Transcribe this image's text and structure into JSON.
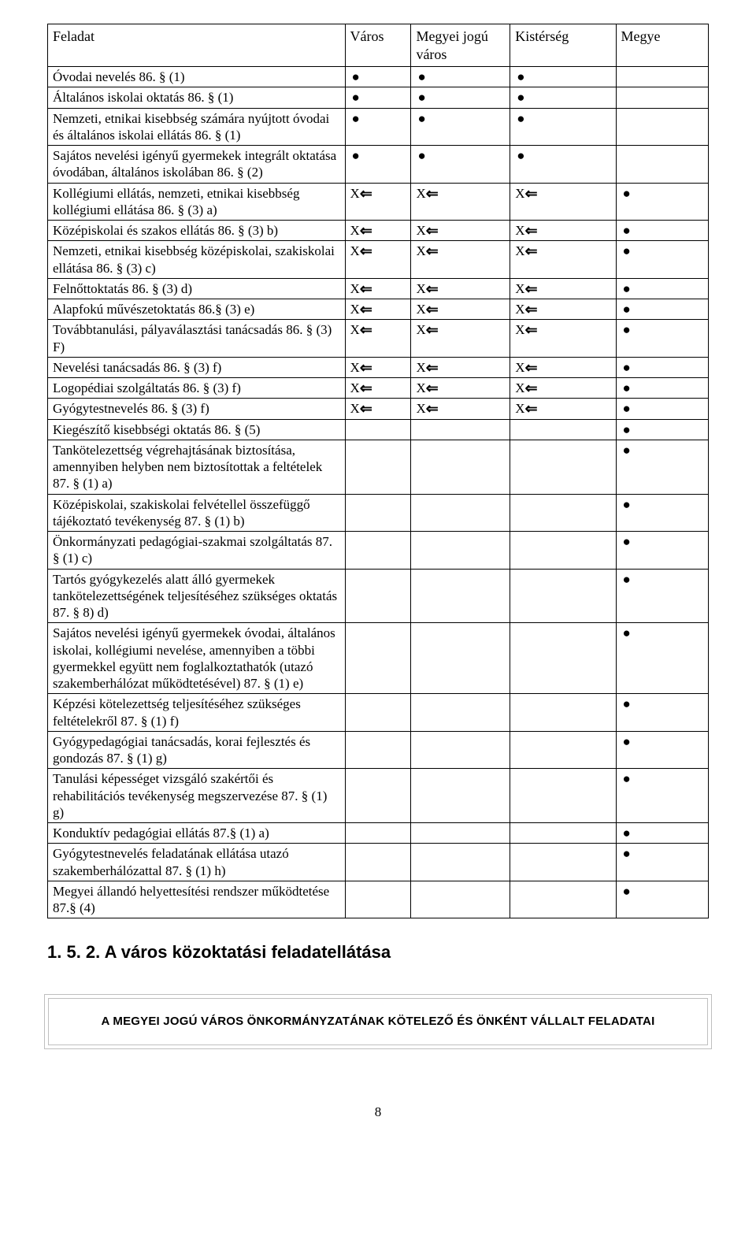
{
  "table": {
    "headers": {
      "task": "Feladat",
      "city": "Város",
      "mjv": "Megyei jogú város",
      "kisterseg": "Kistérség",
      "megye": "Megye"
    },
    "marks": {
      "bullet": "●",
      "x": "X",
      "arrow": "⇐"
    },
    "rows": [
      {
        "task": "Óvodai nevelés 86. § (1)",
        "city": "b",
        "mjv": "b",
        "kisterseg": "b",
        "megye": ""
      },
      {
        "task": "Általános iskolai oktatás 86. § (1)",
        "city": "b",
        "mjv": "b",
        "kisterseg": "b",
        "megye": ""
      },
      {
        "task": "Nemzeti, etnikai kisebbség számára nyújtott óvodai és általános iskolai ellátás 86. § (1)",
        "city": "b",
        "mjv": "b",
        "kisterseg": "b",
        "megye": ""
      },
      {
        "task": "Sajátos nevelési igényű gyermekek integrált oktatása óvodában, általános iskolában 86. § (2)",
        "city": "b",
        "mjv": "b",
        "kisterseg": "b",
        "megye": ""
      },
      {
        "task": "Kollégiumi ellátás, nemzeti, etnikai kisebbség kollégiumi ellátása 86. § (3) a)",
        "city": "x",
        "mjv": "x",
        "kisterseg": "x",
        "megye": "b"
      },
      {
        "task": "Középiskolai és szakos ellátás 86. § (3) b)",
        "city": "x",
        "mjv": "x",
        "kisterseg": "x",
        "megye": "b"
      },
      {
        "task": "Nemzeti, etnikai kisebbség középiskolai, szakiskolai ellátása 86. § (3) c)",
        "city": "x",
        "mjv": "x",
        "kisterseg": "x",
        "megye": "b"
      },
      {
        "task": "Felnőttoktatás 86. § (3) d)",
        "city": "x",
        "mjv": "x",
        "kisterseg": "x",
        "megye": "b"
      },
      {
        "task": "Alapfokú művészetoktatás 86.§ (3) e)",
        "city": "x",
        "mjv": "x",
        "kisterseg": "x",
        "megye": "b"
      },
      {
        "task": "Továbbtanulási, pályaválasztási tanácsadás 86. § (3) F)",
        "city": "x",
        "mjv": "x",
        "kisterseg": "x",
        "megye": "b"
      },
      {
        "task": "Nevelési tanácsadás 86. § (3) f)",
        "city": "x",
        "mjv": "x",
        "kisterseg": "x",
        "megye": "b"
      },
      {
        "task": "Logopédiai szolgáltatás 86. § (3) f)",
        "city": "x",
        "mjv": "x",
        "kisterseg": "x",
        "megye": "b"
      },
      {
        "task": "Gyógytestnevelés 86. § (3) f)",
        "city": "x",
        "mjv": "x",
        "kisterseg": "x",
        "megye": "b"
      },
      {
        "task": "Kiegészítő kisebbségi oktatás 86. § (5)",
        "city": "",
        "mjv": "",
        "kisterseg": "",
        "megye": "b"
      },
      {
        "task": "Tankötelezettség végrehajtásának biztosítása, amennyiben helyben nem biztosítottak a feltételek 87. § (1) a)",
        "city": "",
        "mjv": "",
        "kisterseg": "",
        "megye": "b"
      },
      {
        "task": "Középiskolai, szakiskolai felvétellel összefüggő tájékoztató tevékenység 87. § (1) b)",
        "city": "",
        "mjv": "",
        "kisterseg": "",
        "megye": "b"
      },
      {
        "task": "Önkormányzati pedagógiai-szakmai szolgáltatás 87. § (1) c)",
        "city": "",
        "mjv": "",
        "kisterseg": "",
        "megye": "b"
      },
      {
        "task": "Tartós gyógykezelés alatt álló gyermekek tankötelezettségének teljesítéséhez szükséges oktatás 87. § 8) d)",
        "city": "",
        "mjv": "",
        "kisterseg": "",
        "megye": "b"
      },
      {
        "task": "Sajátos nevelési igényű gyermekek óvodai, általános iskolai, kollégiumi nevelése, amennyiben a többi gyermekkel együtt nem foglalkoztathatók (utazó szakemberhálózat működtetésével) 87. § (1) e)",
        "city": "",
        "mjv": "",
        "kisterseg": "",
        "megye": "b"
      },
      {
        "task": "Képzési kötelezettség teljesítéséhez szükséges feltételekről 87. § (1) f)",
        "city": "",
        "mjv": "",
        "kisterseg": "",
        "megye": "b"
      },
      {
        "task": "Gyógypedagógiai tanácsadás, korai fejlesztés és gondozás 87. § (1) g)",
        "city": "",
        "mjv": "",
        "kisterseg": "",
        "megye": "b"
      },
      {
        "task": "Tanulási képességet vizsgáló szakértői és rehabilitációs tevékenység megszervezése 87. § (1) g)",
        "city": "",
        "mjv": "",
        "kisterseg": "",
        "megye": "b"
      },
      {
        "task": "Konduktív pedagógiai ellátás 87.§ (1) a)",
        "city": "",
        "mjv": "",
        "kisterseg": "",
        "megye": "b"
      },
      {
        "task": "Gyógytestnevelés feladatának ellátása utazó szakemberhálózattal 87. § (1) h)",
        "city": "",
        "mjv": "",
        "kisterseg": "",
        "megye": "b"
      },
      {
        "task": "Megyei állandó helyettesítési rendszer működtetése 87.§ (4)",
        "city": "",
        "mjv": "",
        "kisterseg": "",
        "megye": "b"
      }
    ]
  },
  "section_heading": "1. 5. 2. A város közoktatási feladatellátása",
  "boxed_title": "A MEGYEI JOGÚ VÁROS ÖNKORMÁNYZATÁNAK KÖTELEZŐ ÉS ÖNKÉNT VÁLLALT FELADATAI",
  "page_number": "8"
}
